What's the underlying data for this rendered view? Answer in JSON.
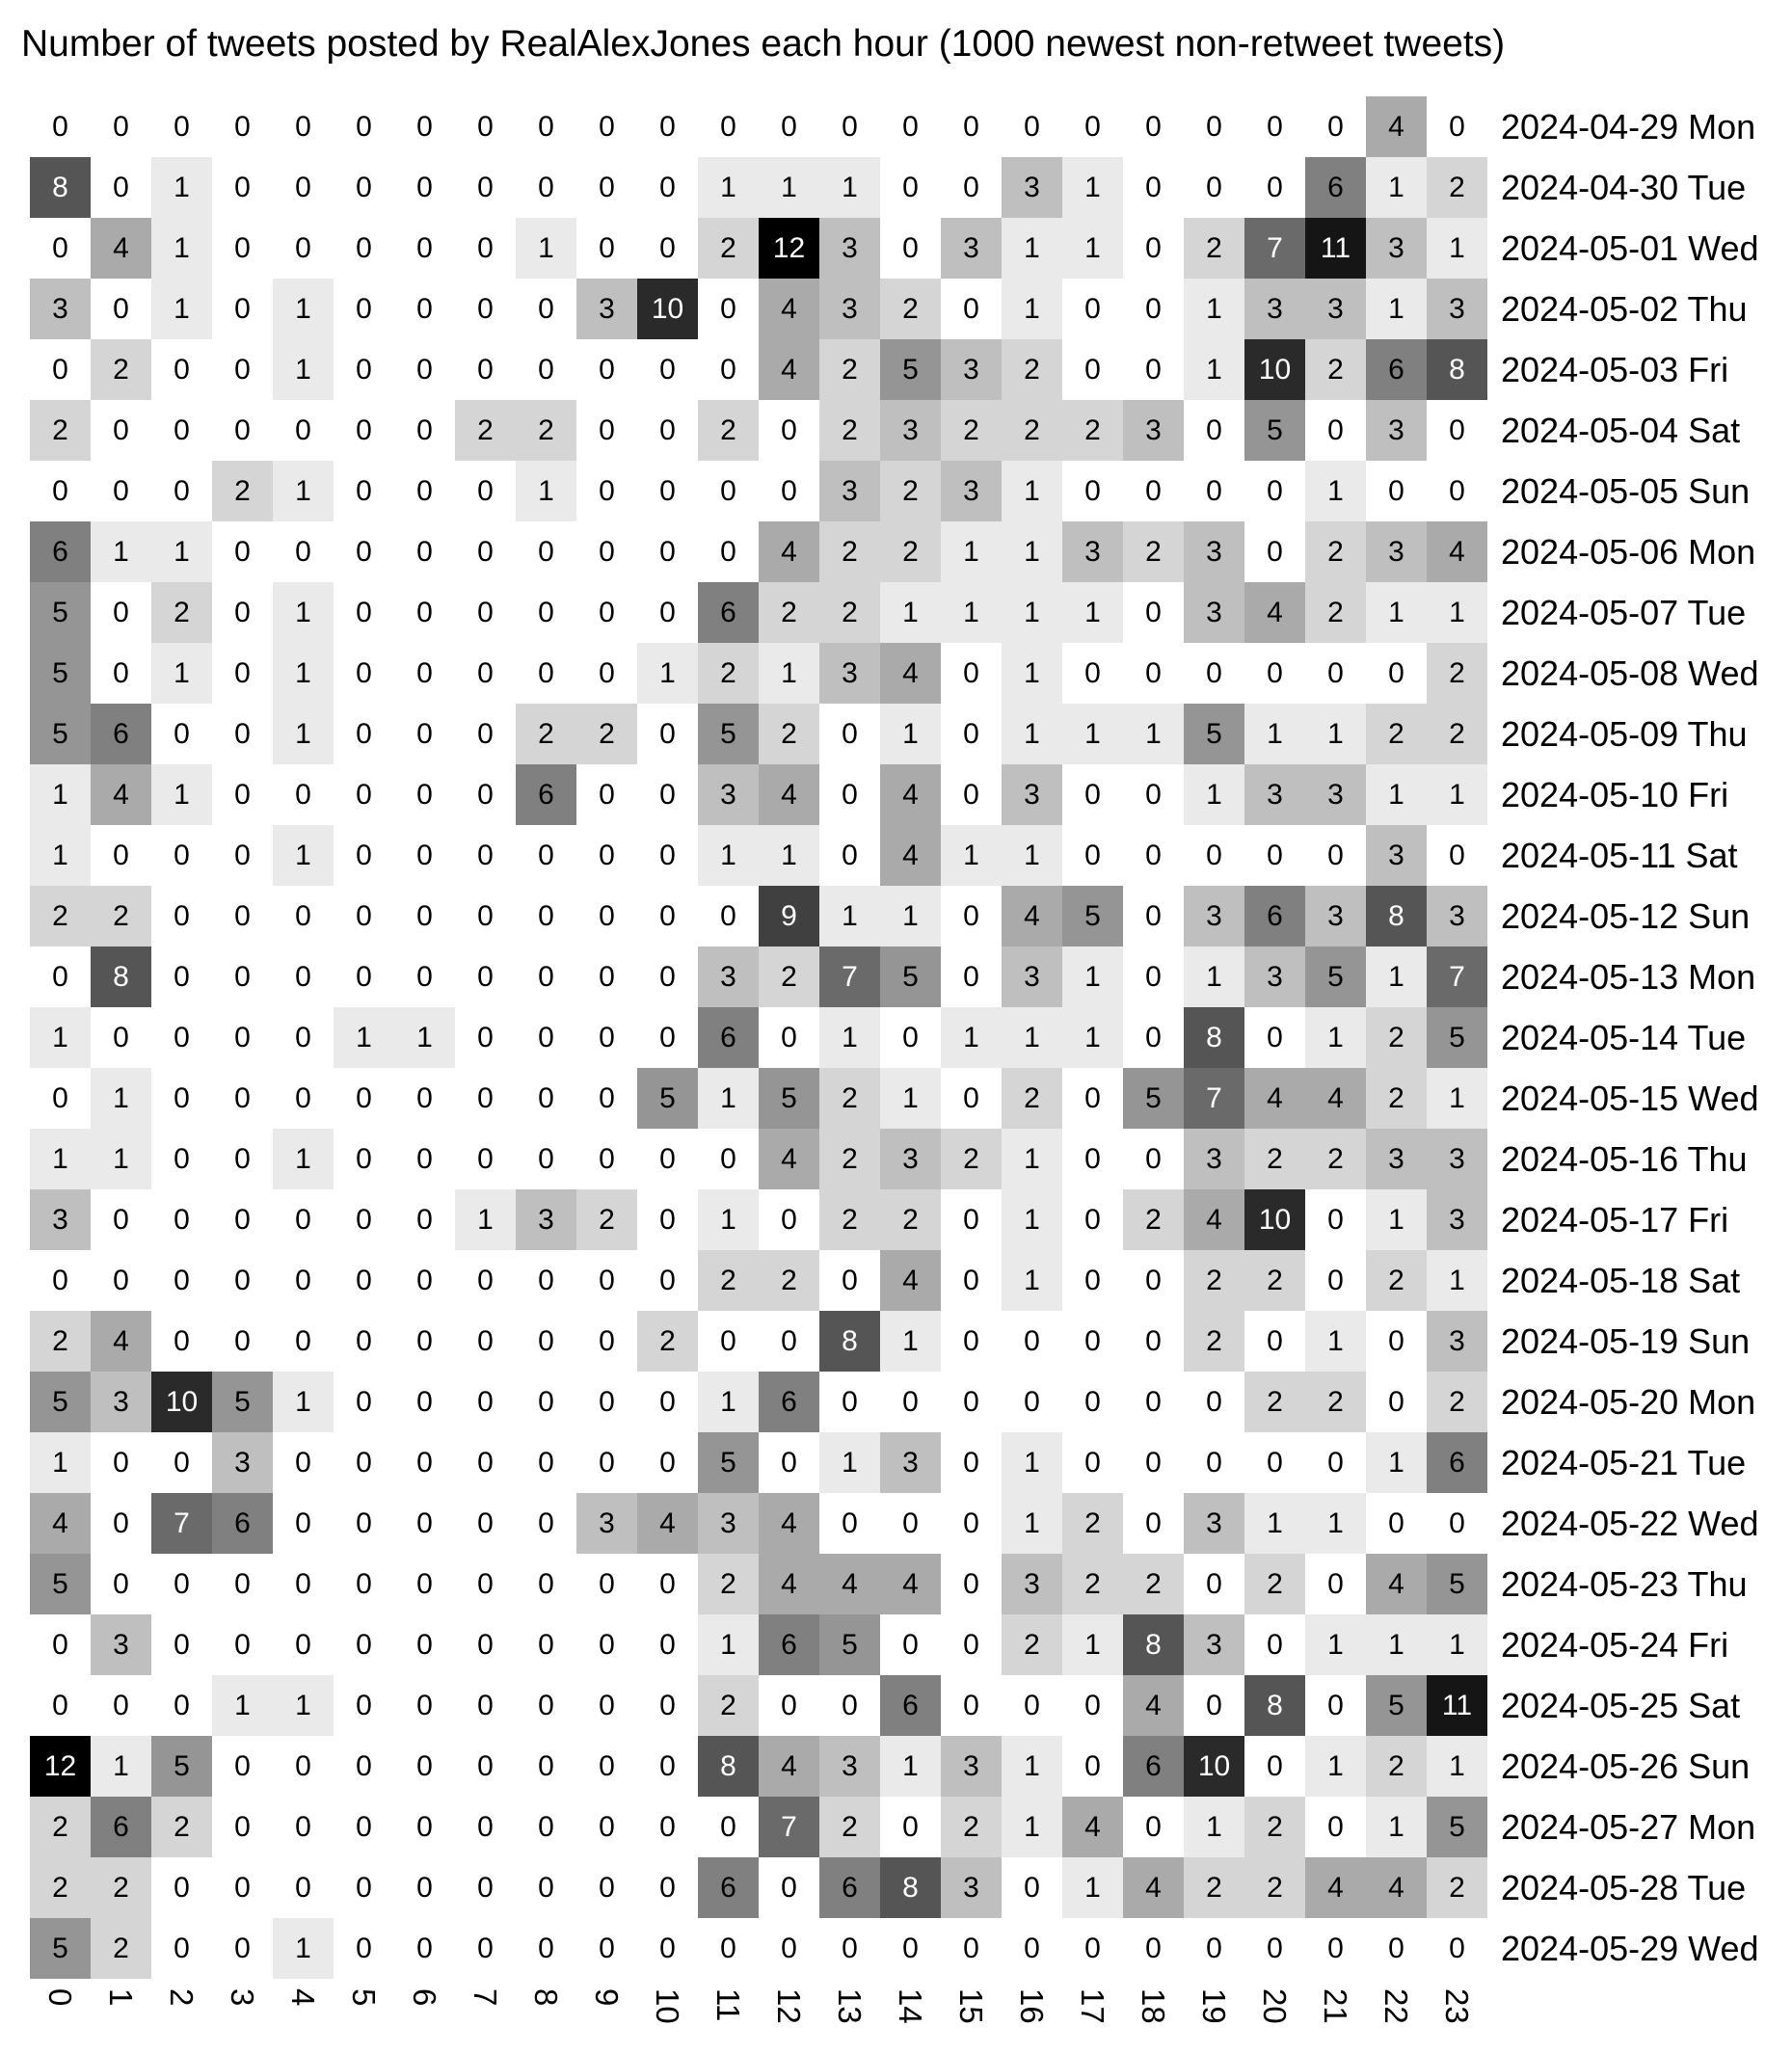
{
  "chart_data": {
    "type": "heatmap",
    "title": "Number of tweets posted by RealAlexJones each hour (1000 newest non-retweet tweets)",
    "x_labels": [
      "0",
      "1",
      "2",
      "3",
      "4",
      "5",
      "6",
      "7",
      "8",
      "9",
      "10",
      "11",
      "12",
      "13",
      "14",
      "15",
      "16",
      "17",
      "18",
      "19",
      "20",
      "21",
      "22",
      "23"
    ],
    "y_labels": [
      "2024-04-29 Mon",
      "2024-04-30 Tue",
      "2024-05-01 Wed",
      "2024-05-02 Thu",
      "2024-05-03 Fri",
      "2024-05-04 Sat",
      "2024-05-05 Sun",
      "2024-05-06 Mon",
      "2024-05-07 Tue",
      "2024-05-08 Wed",
      "2024-05-09 Thu",
      "2024-05-10 Fri",
      "2024-05-11 Sat",
      "2024-05-12 Sun",
      "2024-05-13 Mon",
      "2024-05-14 Tue",
      "2024-05-15 Wed",
      "2024-05-16 Thu",
      "2024-05-17 Fri",
      "2024-05-18 Sat",
      "2024-05-19 Sun",
      "2024-05-20 Mon",
      "2024-05-21 Tue",
      "2024-05-22 Wed",
      "2024-05-23 Thu",
      "2024-05-24 Fri",
      "2024-05-25 Sat",
      "2024-05-26 Sun",
      "2024-05-27 Mon",
      "2024-05-28 Tue",
      "2024-05-29 Wed"
    ],
    "values": [
      [
        0,
        0,
        0,
        0,
        0,
        0,
        0,
        0,
        0,
        0,
        0,
        0,
        0,
        0,
        0,
        0,
        0,
        0,
        0,
        0,
        0,
        0,
        4,
        0
      ],
      [
        8,
        0,
        1,
        0,
        0,
        0,
        0,
        0,
        0,
        0,
        0,
        1,
        1,
        1,
        0,
        0,
        3,
        1,
        0,
        0,
        0,
        6,
        1,
        2
      ],
      [
        0,
        4,
        1,
        0,
        0,
        0,
        0,
        0,
        1,
        0,
        0,
        2,
        12,
        3,
        0,
        3,
        1,
        1,
        0,
        2,
        7,
        11,
        3,
        1
      ],
      [
        3,
        0,
        1,
        0,
        1,
        0,
        0,
        0,
        0,
        3,
        10,
        0,
        4,
        3,
        2,
        0,
        1,
        0,
        0,
        1,
        3,
        3,
        1,
        3
      ],
      [
        0,
        2,
        0,
        0,
        1,
        0,
        0,
        0,
        0,
        0,
        0,
        0,
        4,
        2,
        5,
        3,
        2,
        0,
        0,
        1,
        10,
        2,
        6,
        8
      ],
      [
        2,
        0,
        0,
        0,
        0,
        0,
        0,
        2,
        2,
        0,
        0,
        2,
        0,
        2,
        3,
        2,
        2,
        2,
        3,
        0,
        5,
        0,
        3,
        0
      ],
      [
        0,
        0,
        0,
        2,
        1,
        0,
        0,
        0,
        1,
        0,
        0,
        0,
        0,
        3,
        2,
        3,
        1,
        0,
        0,
        0,
        0,
        1,
        0,
        0
      ],
      [
        6,
        1,
        1,
        0,
        0,
        0,
        0,
        0,
        0,
        0,
        0,
        0,
        4,
        2,
        2,
        1,
        1,
        3,
        2,
        3,
        0,
        2,
        3,
        4
      ],
      [
        5,
        0,
        2,
        0,
        1,
        0,
        0,
        0,
        0,
        0,
        0,
        6,
        2,
        2,
        1,
        1,
        1,
        1,
        0,
        3,
        4,
        2,
        1,
        1
      ],
      [
        5,
        0,
        1,
        0,
        1,
        0,
        0,
        0,
        0,
        0,
        1,
        2,
        1,
        3,
        4,
        0,
        1,
        0,
        0,
        0,
        0,
        0,
        0,
        2
      ],
      [
        5,
        6,
        0,
        0,
        1,
        0,
        0,
        0,
        2,
        2,
        0,
        5,
        2,
        0,
        1,
        0,
        1,
        1,
        1,
        5,
        1,
        1,
        2,
        2
      ],
      [
        1,
        4,
        1,
        0,
        0,
        0,
        0,
        0,
        6,
        0,
        0,
        3,
        4,
        0,
        4,
        0,
        3,
        0,
        0,
        1,
        3,
        3,
        1,
        1
      ],
      [
        1,
        0,
        0,
        0,
        1,
        0,
        0,
        0,
        0,
        0,
        0,
        1,
        1,
        0,
        4,
        1,
        1,
        0,
        0,
        0,
        0,
        0,
        3,
        0
      ],
      [
        2,
        2,
        0,
        0,
        0,
        0,
        0,
        0,
        0,
        0,
        0,
        0,
        9,
        1,
        1,
        0,
        4,
        5,
        0,
        3,
        6,
        3,
        8,
        3
      ],
      [
        0,
        8,
        0,
        0,
        0,
        0,
        0,
        0,
        0,
        0,
        0,
        3,
        2,
        7,
        5,
        0,
        3,
        1,
        0,
        1,
        3,
        5,
        1,
        7
      ],
      [
        1,
        0,
        0,
        0,
        0,
        1,
        1,
        0,
        0,
        0,
        0,
        6,
        0,
        1,
        0,
        1,
        1,
        1,
        0,
        8,
        0,
        1,
        2,
        5
      ],
      [
        0,
        1,
        0,
        0,
        0,
        0,
        0,
        0,
        0,
        0,
        5,
        1,
        5,
        2,
        1,
        0,
        2,
        0,
        5,
        7,
        4,
        4,
        2,
        1
      ],
      [
        1,
        1,
        0,
        0,
        1,
        0,
        0,
        0,
        0,
        0,
        0,
        0,
        4,
        2,
        3,
        2,
        1,
        0,
        0,
        3,
        2,
        2,
        3,
        3
      ],
      [
        3,
        0,
        0,
        0,
        0,
        0,
        0,
        1,
        3,
        2,
        0,
        1,
        0,
        2,
        2,
        0,
        1,
        0,
        2,
        4,
        10,
        0,
        1,
        3
      ],
      [
        0,
        0,
        0,
        0,
        0,
        0,
        0,
        0,
        0,
        0,
        0,
        2,
        2,
        0,
        4,
        0,
        1,
        0,
        0,
        2,
        2,
        0,
        2,
        1
      ],
      [
        2,
        4,
        0,
        0,
        0,
        0,
        0,
        0,
        0,
        0,
        2,
        0,
        0,
        8,
        1,
        0,
        0,
        0,
        0,
        2,
        0,
        1,
        0,
        3
      ],
      [
        5,
        3,
        10,
        5,
        1,
        0,
        0,
        0,
        0,
        0,
        0,
        1,
        6,
        0,
        0,
        0,
        0,
        0,
        0,
        0,
        2,
        2,
        0,
        2
      ],
      [
        1,
        0,
        0,
        3,
        0,
        0,
        0,
        0,
        0,
        0,
        0,
        5,
        0,
        1,
        3,
        0,
        1,
        0,
        0,
        0,
        0,
        0,
        1,
        6
      ],
      [
        4,
        0,
        7,
        6,
        0,
        0,
        0,
        0,
        0,
        3,
        4,
        3,
        4,
        0,
        0,
        0,
        1,
        2,
        0,
        3,
        1,
        1,
        0,
        0
      ],
      [
        5,
        0,
        0,
        0,
        0,
        0,
        0,
        0,
        0,
        0,
        0,
        2,
        4,
        4,
        4,
        0,
        3,
        2,
        2,
        0,
        2,
        0,
        4,
        5
      ],
      [
        0,
        3,
        0,
        0,
        0,
        0,
        0,
        0,
        0,
        0,
        0,
        1,
        6,
        5,
        0,
        0,
        2,
        1,
        8,
        3,
        0,
        1,
        1,
        1
      ],
      [
        0,
        0,
        0,
        1,
        1,
        0,
        0,
        0,
        0,
        0,
        0,
        2,
        0,
        0,
        6,
        0,
        0,
        0,
        4,
        0,
        8,
        0,
        5,
        11
      ],
      [
        12,
        1,
        5,
        0,
        0,
        0,
        0,
        0,
        0,
        0,
        0,
        8,
        4,
        3,
        1,
        3,
        1,
        0,
        6,
        10,
        0,
        1,
        2,
        1
      ],
      [
        2,
        6,
        2,
        0,
        0,
        0,
        0,
        0,
        0,
        0,
        0,
        0,
        7,
        2,
        0,
        2,
        1,
        4,
        0,
        1,
        2,
        0,
        1,
        5
      ],
      [
        2,
        2,
        0,
        0,
        0,
        0,
        0,
        0,
        0,
        0,
        0,
        6,
        0,
        6,
        8,
        3,
        0,
        1,
        4,
        2,
        2,
        4,
        4,
        2
      ],
      [
        5,
        2,
        0,
        0,
        1,
        0,
        0,
        0,
        0,
        0,
        0,
        0,
        0,
        0,
        0,
        0,
        0,
        0,
        0,
        0,
        0,
        0,
        0,
        0
      ]
    ],
    "color_scale": "grayscale: 0 = white, max = black",
    "grid": false
  }
}
